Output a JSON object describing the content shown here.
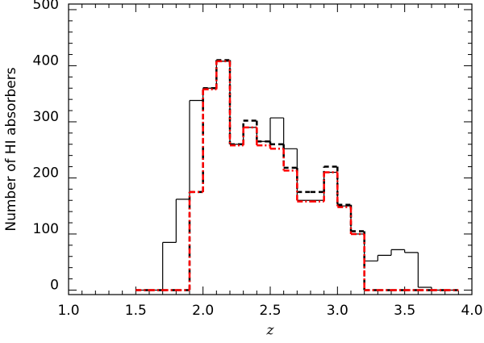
{
  "chart_data": {
    "type": "histogram",
    "xlabel": "z",
    "ylabel": "Number of HI absorbers",
    "bins": [
      1.5,
      1.6,
      1.7,
      1.8,
      1.9,
      2.0,
      2.1,
      2.2,
      2.3,
      2.4,
      2.5,
      2.6,
      2.7,
      2.8,
      2.9,
      3.0,
      3.1,
      3.2,
      3.3,
      3.4,
      3.5,
      3.6,
      3.7,
      3.8,
      3.9
    ],
    "series": [
      {
        "color": "#000000",
        "dash": "solid",
        "values": [
          0,
          0,
          85,
          162,
          338,
          360,
          408,
          260,
          290,
          265,
          307,
          252,
          160,
          160,
          210,
          150,
          100,
          52,
          62,
          72,
          67,
          5,
          0,
          0
        ]
      },
      {
        "color": "#000000",
        "dash": "dashed",
        "values": [
          0,
          0,
          0,
          0,
          175,
          360,
          410,
          260,
          302,
          265,
          260,
          218,
          175,
          175,
          220,
          152,
          105,
          0,
          0,
          0,
          0,
          0,
          0,
          0
        ]
      },
      {
        "color": "#ff0000",
        "dash": "dashdot",
        "values": [
          0,
          0,
          0,
          0,
          175,
          358,
          408,
          258,
          290,
          258,
          252,
          213,
          158,
          158,
          210,
          148,
          100,
          0,
          0,
          0,
          0,
          0,
          0,
          0
        ]
      }
    ],
    "xlim": [
      1.0,
      4.0
    ],
    "xticks": [
      {
        "value": 1.0,
        "label": "1.0"
      },
      {
        "value": 1.5,
        "label": "1.5"
      },
      {
        "value": 2.0,
        "label": "2.0"
      },
      {
        "value": 2.5,
        "label": "2.5"
      },
      {
        "value": 3.0,
        "label": "3.0"
      },
      {
        "value": 3.5,
        "label": "3.5"
      },
      {
        "value": 4.0,
        "label": "4.0"
      }
    ],
    "ylim": [
      -8,
      510
    ],
    "yticks": [
      0,
      100,
      200,
      300,
      400,
      500
    ]
  }
}
